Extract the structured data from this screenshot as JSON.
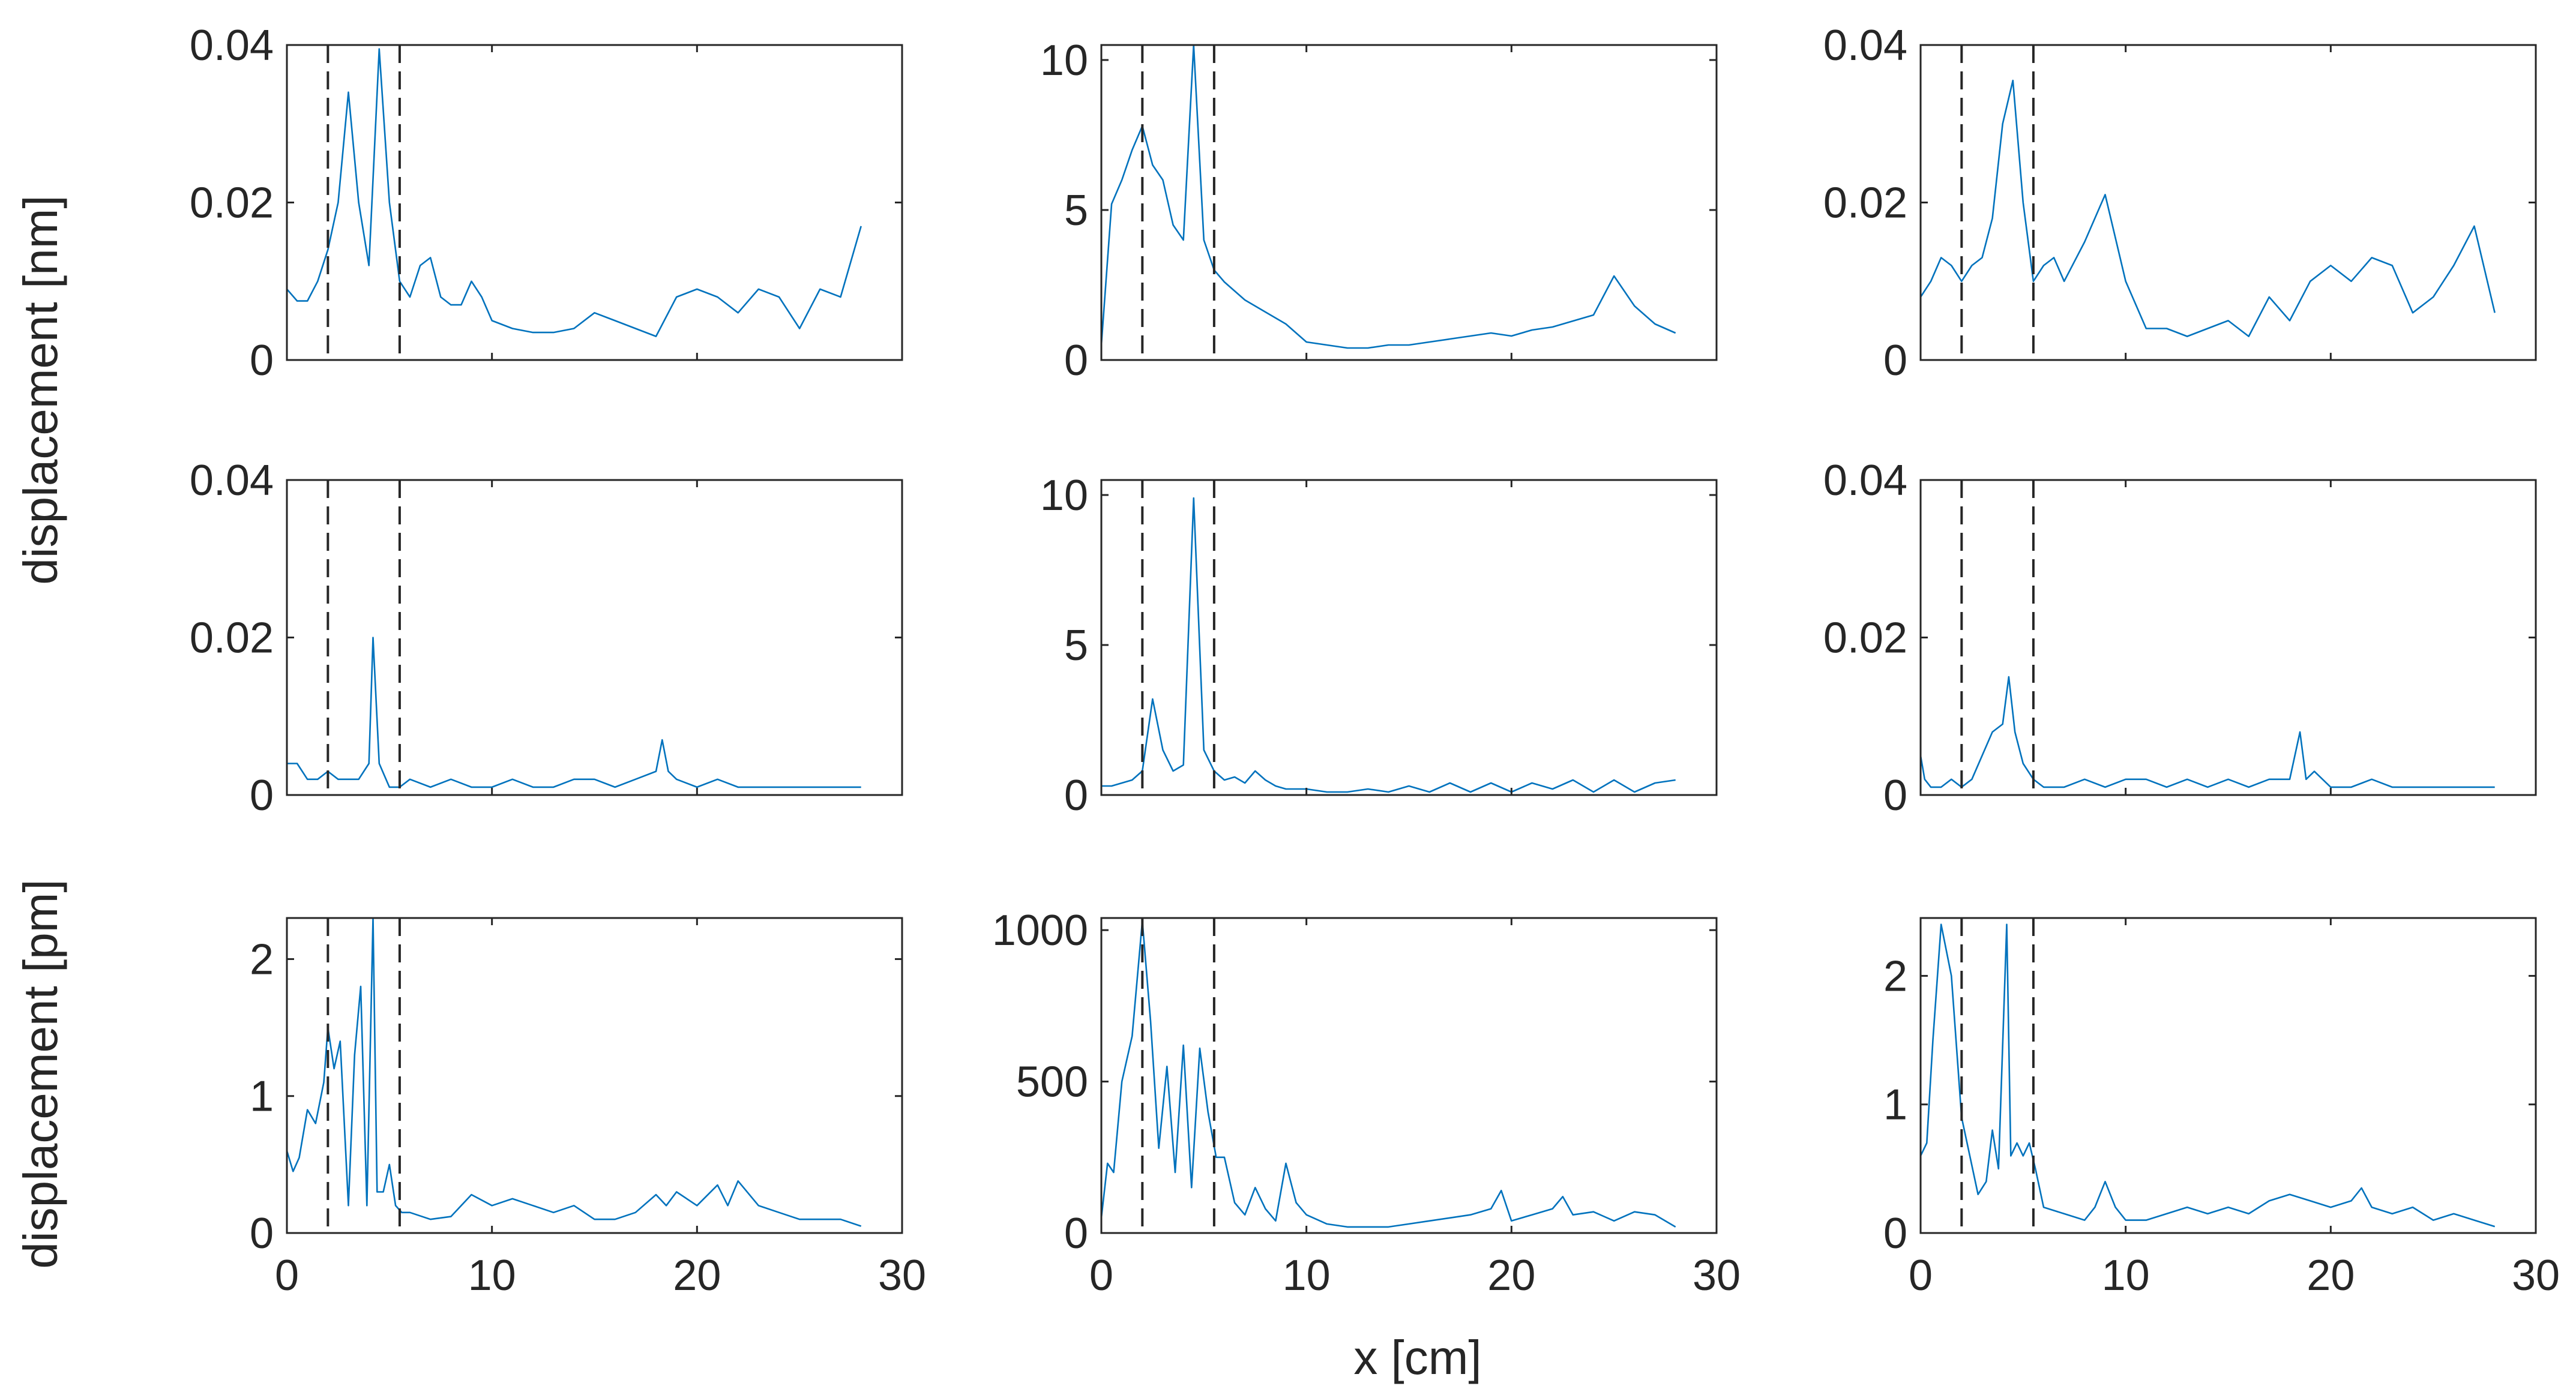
{
  "colors": {
    "series": "#0072BD",
    "axes": "#262626",
    "background": "#ffffff"
  },
  "labels": {
    "ylabel_top": "displacement [nm]",
    "ylabel_bottom": "displacement [pm]",
    "xlabel": "x [cm]"
  },
  "chart_data": [
    {
      "type": "line",
      "row": 0,
      "col": 0,
      "xlim": [
        0,
        30
      ],
      "ylim": [
        0,
        0.04
      ],
      "xticks": [
        0,
        10,
        20,
        30
      ],
      "yticks": [
        0,
        0.02,
        0.04
      ],
      "yticklabels": [
        "0",
        "0.02",
        "0.04"
      ],
      "show_xticklabels": false,
      "dashed_x": [
        2,
        5.5
      ],
      "series": [
        {
          "name": "row1-col1",
          "x": [
            0,
            0.5,
            1,
            1.5,
            2,
            2.5,
            3,
            3.5,
            4,
            4.5,
            5,
            5.5,
            6,
            6.5,
            7,
            7.5,
            8,
            8.5,
            9,
            9.5,
            10,
            11,
            12,
            13,
            14,
            15,
            16,
            17,
            18,
            19,
            20,
            21,
            22,
            23,
            24,
            25,
            26,
            27,
            28
          ],
          "values": [
            0.009,
            0.0075,
            0.0075,
            0.01,
            0.014,
            0.02,
            0.034,
            0.02,
            0.012,
            0.0395,
            0.02,
            0.01,
            0.008,
            0.012,
            0.013,
            0.008,
            0.007,
            0.007,
            0.01,
            0.008,
            0.005,
            0.004,
            0.0035,
            0.0035,
            0.004,
            0.006,
            0.005,
            0.004,
            0.003,
            0.008,
            0.009,
            0.008,
            0.006,
            0.009,
            0.008,
            0.004,
            0.009,
            0.008,
            0.017
          ]
        }
      ]
    },
    {
      "type": "line",
      "row": 0,
      "col": 1,
      "xlim": [
        0,
        30
      ],
      "ylim": [
        0,
        10.5
      ],
      "xticks": [
        0,
        10,
        20,
        30
      ],
      "yticks": [
        0,
        5,
        10
      ],
      "yticklabels": [
        "0",
        "5",
        "10"
      ],
      "show_xticklabels": false,
      "dashed_x": [
        2,
        5.5
      ],
      "series": [
        {
          "name": "row1-col2",
          "x": [
            0,
            0.5,
            1,
            1.5,
            2,
            2.5,
            3,
            3.5,
            4,
            4.5,
            5,
            5.5,
            6,
            7,
            8,
            9,
            10,
            11,
            12,
            13,
            14,
            15,
            16,
            17,
            18,
            19,
            20,
            21,
            22,
            23,
            24,
            25,
            26,
            27,
            28
          ],
          "values": [
            0.5,
            5.2,
            6,
            7,
            7.8,
            6.5,
            6,
            4.5,
            4,
            10.5,
            4,
            3,
            2.6,
            2,
            1.6,
            1.2,
            0.6,
            0.5,
            0.4,
            0.4,
            0.5,
            0.5,
            0.6,
            0.7,
            0.8,
            0.9,
            0.8,
            1,
            1.1,
            1.3,
            1.5,
            2.8,
            1.8,
            1.2,
            0.9
          ]
        }
      ]
    },
    {
      "type": "line",
      "row": 0,
      "col": 2,
      "xlim": [
        0,
        30
      ],
      "ylim": [
        0,
        0.04
      ],
      "xticks": [
        0,
        10,
        20,
        30
      ],
      "yticks": [
        0,
        0.02,
        0.04
      ],
      "yticklabels": [
        "0",
        "0.02",
        "0.04"
      ],
      "show_xticklabels": false,
      "dashed_x": [
        2,
        5.5
      ],
      "series": [
        {
          "name": "row1-col3",
          "x": [
            0,
            0.5,
            1,
            1.5,
            2,
            2.5,
            3,
            3.5,
            4,
            4.5,
            5,
            5.5,
            6,
            6.5,
            7,
            8,
            9,
            10,
            11,
            12,
            13,
            14,
            15,
            16,
            17,
            18,
            19,
            20,
            21,
            22,
            23,
            24,
            25,
            26,
            27,
            28
          ],
          "values": [
            0.008,
            0.01,
            0.013,
            0.012,
            0.01,
            0.012,
            0.013,
            0.018,
            0.03,
            0.0355,
            0.02,
            0.01,
            0.012,
            0.013,
            0.01,
            0.015,
            0.021,
            0.01,
            0.004,
            0.004,
            0.003,
            0.004,
            0.005,
            0.003,
            0.008,
            0.005,
            0.01,
            0.012,
            0.01,
            0.013,
            0.012,
            0.006,
            0.008,
            0.012,
            0.017,
            0.006
          ]
        }
      ]
    },
    {
      "type": "line",
      "row": 1,
      "col": 0,
      "xlim": [
        0,
        30
      ],
      "ylim": [
        0,
        0.04
      ],
      "xticks": [
        0,
        10,
        20,
        30
      ],
      "yticks": [
        0,
        0.02,
        0.04
      ],
      "yticklabels": [
        "0",
        "0.02",
        "0.04"
      ],
      "show_xticklabels": false,
      "dashed_x": [
        2,
        5.5
      ],
      "series": [
        {
          "name": "row2-col1",
          "x": [
            0,
            0.5,
            1,
            1.5,
            2,
            2.5,
            3,
            3.5,
            4,
            4.2,
            4.5,
            5,
            5.5,
            6,
            7,
            8,
            9,
            10,
            11,
            12,
            13,
            14,
            15,
            16,
            17,
            18,
            18.3,
            18.6,
            19,
            20,
            21,
            22,
            23,
            24,
            25,
            26,
            27,
            28
          ],
          "values": [
            0.004,
            0.004,
            0.002,
            0.002,
            0.003,
            0.002,
            0.002,
            0.002,
            0.004,
            0.02,
            0.004,
            0.001,
            0.001,
            0.002,
            0.001,
            0.002,
            0.001,
            0.001,
            0.002,
            0.001,
            0.001,
            0.002,
            0.002,
            0.001,
            0.002,
            0.003,
            0.007,
            0.003,
            0.002,
            0.001,
            0.002,
            0.001,
            0.001,
            0.001,
            0.001,
            0.001,
            0.001,
            0.001
          ]
        }
      ]
    },
    {
      "type": "line",
      "row": 1,
      "col": 1,
      "xlim": [
        0,
        30
      ],
      "ylim": [
        0,
        10.5
      ],
      "xticks": [
        0,
        10,
        20,
        30
      ],
      "yticks": [
        0,
        5,
        10
      ],
      "yticklabels": [
        "0",
        "5",
        "10"
      ],
      "show_xticklabels": false,
      "dashed_x": [
        2,
        5.5
      ],
      "series": [
        {
          "name": "row2-col2",
          "x": [
            0,
            0.5,
            1,
            1.5,
            2,
            2.5,
            3,
            3.5,
            4,
            4.5,
            5,
            5.5,
            6,
            6.5,
            7,
            7.5,
            8,
            8.5,
            9,
            10,
            11,
            12,
            13,
            14,
            15,
            16,
            17,
            18,
            19,
            20,
            21,
            22,
            23,
            24,
            25,
            26,
            27,
            28
          ],
          "values": [
            0.3,
            0.3,
            0.4,
            0.5,
            0.8,
            3.2,
            1.5,
            0.8,
            1,
            9.9,
            1.5,
            0.8,
            0.5,
            0.6,
            0.4,
            0.8,
            0.5,
            0.3,
            0.2,
            0.2,
            0.1,
            0.1,
            0.2,
            0.1,
            0.3,
            0.1,
            0.4,
            0.1,
            0.4,
            0.1,
            0.4,
            0.2,
            0.5,
            0.1,
            0.5,
            0.1,
            0.4,
            0.5
          ]
        }
      ]
    },
    {
      "type": "line",
      "row": 1,
      "col": 2,
      "xlim": [
        0,
        30
      ],
      "ylim": [
        0,
        0.04
      ],
      "xticks": [
        0,
        10,
        20,
        30
      ],
      "yticks": [
        0,
        0.02,
        0.04
      ],
      "yticklabels": [
        "0",
        "0.02",
        "0.04"
      ],
      "show_xticklabels": false,
      "dashed_x": [
        2,
        5.5
      ],
      "series": [
        {
          "name": "row2-col2",
          "x": [
            0,
            0.2,
            0.5,
            1,
            1.5,
            2,
            2.5,
            3,
            3.5,
            4,
            4.3,
            4.6,
            5,
            5.5,
            6,
            7,
            8,
            9,
            10,
            11,
            12,
            13,
            14,
            15,
            16,
            17,
            18,
            18.5,
            18.8,
            19.2,
            20,
            21,
            22,
            23,
            24,
            25,
            26,
            27,
            28
          ],
          "values": [
            0.005,
            0.002,
            0.001,
            0.001,
            0.002,
            0.001,
            0.002,
            0.005,
            0.008,
            0.009,
            0.015,
            0.008,
            0.004,
            0.002,
            0.001,
            0.001,
            0.002,
            0.001,
            0.002,
            0.002,
            0.001,
            0.002,
            0.001,
            0.002,
            0.001,
            0.002,
            0.002,
            0.008,
            0.002,
            0.003,
            0.001,
            0.001,
            0.002,
            0.001,
            0.001,
            0.001,
            0.001,
            0.001,
            0.001
          ]
        }
      ]
    },
    {
      "type": "line",
      "row": 2,
      "col": 0,
      "xlim": [
        0,
        30
      ],
      "ylim": [
        0,
        2.3
      ],
      "xticks": [
        0,
        10,
        20,
        30
      ],
      "yticks": [
        0,
        1,
        2
      ],
      "yticklabels": [
        "0",
        "1",
        "2"
      ],
      "xticklabels": [
        "0",
        "10",
        "20",
        "30"
      ],
      "show_xticklabels": true,
      "dashed_x": [
        2,
        5.5
      ],
      "series": [
        {
          "name": "row3-col1",
          "x": [
            0,
            0.3,
            0.6,
            1,
            1.4,
            1.8,
            2,
            2.3,
            2.6,
            3,
            3.3,
            3.6,
            3.9,
            4.2,
            4.4,
            4.7,
            5,
            5.3,
            5.6,
            6,
            7,
            8,
            9,
            10,
            11,
            12,
            13,
            14,
            15,
            16,
            17,
            18,
            18.5,
            19,
            20,
            21,
            21.5,
            22,
            23,
            24,
            25,
            26,
            27,
            28
          ],
          "values": [
            0.6,
            0.45,
            0.55,
            0.9,
            0.8,
            1.1,
            1.5,
            1.2,
            1.4,
            0.2,
            1.3,
            1.8,
            0.2,
            2.3,
            0.3,
            0.3,
            0.5,
            0.2,
            0.15,
            0.15,
            0.1,
            0.12,
            0.28,
            0.2,
            0.25,
            0.2,
            0.15,
            0.2,
            0.1,
            0.1,
            0.15,
            0.28,
            0.2,
            0.3,
            0.2,
            0.35,
            0.2,
            0.38,
            0.2,
            0.15,
            0.1,
            0.1,
            0.1,
            0.05
          ]
        }
      ]
    },
    {
      "type": "line",
      "row": 2,
      "col": 1,
      "xlim": [
        0,
        30
      ],
      "ylim": [
        0,
        1040
      ],
      "xticks": [
        0,
        10,
        20,
        30
      ],
      "yticks": [
        0,
        500,
        1000
      ],
      "yticklabels": [
        "0",
        "500",
        "1000"
      ],
      "xticklabels": [
        "0",
        "10",
        "20",
        "30"
      ],
      "show_xticklabels": true,
      "dashed_x": [
        2,
        5.5
      ],
      "series": [
        {
          "name": "row3-col2",
          "x": [
            0,
            0.3,
            0.6,
            1,
            1.5,
            2,
            2.4,
            2.8,
            3.2,
            3.6,
            4,
            4.4,
            4.8,
            5.2,
            5.6,
            6,
            6.5,
            7,
            7.5,
            8,
            8.5,
            9,
            9.5,
            10,
            11,
            12,
            13,
            14,
            15,
            16,
            17,
            18,
            19,
            19.5,
            20,
            21,
            22,
            22.5,
            23,
            24,
            25,
            26,
            27,
            28
          ],
          "values": [
            50,
            230,
            200,
            500,
            650,
            1030,
            700,
            280,
            550,
            200,
            620,
            150,
            610,
            400,
            250,
            250,
            100,
            60,
            150,
            80,
            40,
            230,
            100,
            60,
            30,
            20,
            20,
            20,
            30,
            40,
            50,
            60,
            80,
            140,
            40,
            60,
            80,
            120,
            60,
            70,
            40,
            70,
            60,
            20
          ]
        }
      ]
    },
    {
      "type": "line",
      "row": 2,
      "col": 2,
      "xlim": [
        0,
        30
      ],
      "ylim": [
        0,
        2.45
      ],
      "xticks": [
        0,
        10,
        20,
        30
      ],
      "yticks": [
        0,
        1,
        2
      ],
      "yticklabels": [
        "0",
        "1",
        "2"
      ],
      "xticklabels": [
        "0",
        "10",
        "20",
        "30"
      ],
      "show_xticklabels": true,
      "dashed_x": [
        2,
        5.5
      ],
      "series": [
        {
          "name": "row3-col3",
          "x": [
            0,
            0.3,
            0.6,
            1,
            1.5,
            2,
            2.4,
            2.8,
            3.2,
            3.5,
            3.8,
            4.2,
            4.4,
            4.7,
            5,
            5.3,
            5.6,
            6,
            7,
            8,
            8.5,
            9,
            9.5,
            10,
            11,
            12,
            13,
            14,
            15,
            16,
            17,
            18,
            19,
            20,
            21,
            21.5,
            22,
            23,
            24,
            25,
            26,
            27,
            28
          ],
          "values": [
            0.6,
            0.7,
            1.5,
            2.4,
            2,
            0.9,
            0.6,
            0.3,
            0.4,
            0.8,
            0.5,
            2.4,
            0.6,
            0.7,
            0.6,
            0.7,
            0.5,
            0.2,
            0.15,
            0.1,
            0.2,
            0.4,
            0.2,
            0.1,
            0.1,
            0.15,
            0.2,
            0.15,
            0.2,
            0.15,
            0.25,
            0.3,
            0.25,
            0.2,
            0.25,
            0.35,
            0.2,
            0.15,
            0.2,
            0.1,
            0.15,
            0.1,
            0.05
          ]
        }
      ]
    }
  ]
}
